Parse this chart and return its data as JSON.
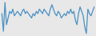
{
  "values": [
    3,
    -5,
    8,
    -2,
    1,
    4,
    3,
    5,
    2,
    3,
    4,
    3,
    2,
    4,
    5,
    3,
    4,
    3,
    2,
    1,
    3,
    2,
    4,
    3,
    5,
    4,
    3,
    5,
    4,
    3,
    2,
    5,
    7,
    5,
    3,
    2,
    4,
    3,
    1,
    2,
    3,
    2,
    4,
    3,
    5,
    3,
    4,
    0,
    -2,
    3,
    6,
    4,
    2,
    -3,
    -6,
    5,
    3,
    2,
    4,
    6
  ],
  "line_color": "#4a90c4",
  "background_color": "#e8e8e8",
  "linewidth": 0.9
}
